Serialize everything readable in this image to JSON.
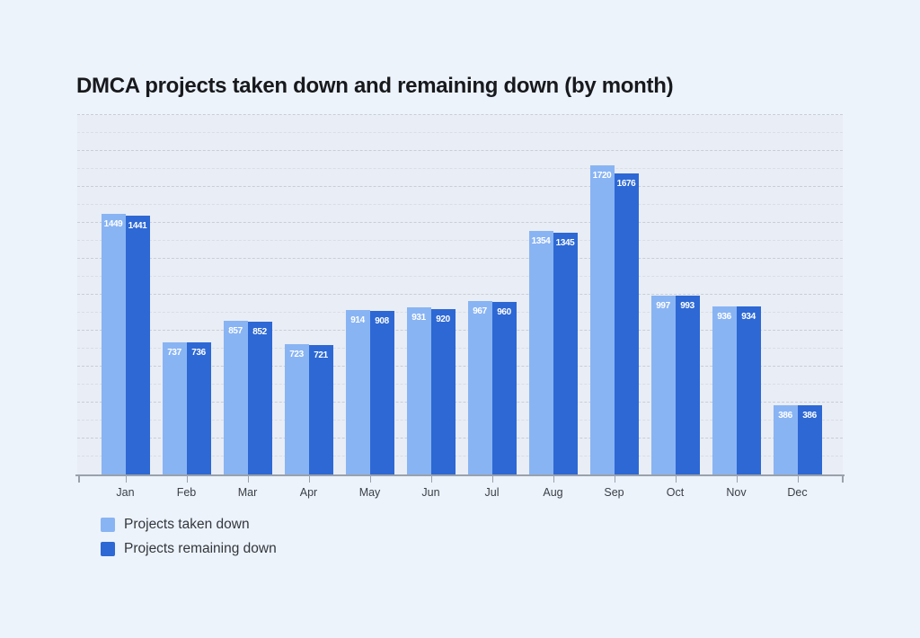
{
  "title": "DMCA projects taken down and remaining down (by month)",
  "colors": {
    "page_background": "#edf3fb",
    "plot_background": "#e9edf5",
    "series_light_blue": "#89b4f3",
    "series_dark_blue": "#2d68d4",
    "axis": "#9aa1ab",
    "bar_value_text": "#ffffff"
  },
  "chart_data": {
    "type": "bar",
    "title": "DMCA projects taken down and remaining down (by month)",
    "categories": [
      "Jan",
      "Feb",
      "Mar",
      "Apr",
      "May",
      "Jun",
      "Jul",
      "Aug",
      "Sep",
      "Oct",
      "Nov",
      "Dec"
    ],
    "series": [
      {
        "name": "Projects taken down",
        "color": "#89b4f3",
        "values": [
          1449,
          737,
          857,
          723,
          914,
          931,
          967,
          1354,
          1720,
          997,
          936,
          386
        ]
      },
      {
        "name": "Projects remaining down",
        "color": "#2d68d4",
        "values": [
          1441,
          736,
          852,
          721,
          908,
          920,
          960,
          1345,
          1676,
          993,
          934,
          386
        ]
      }
    ],
    "xlabel": "",
    "ylabel": "",
    "ylim": [
      0,
      2000
    ],
    "grid_step": 100,
    "grid": "horizontal dashed, no y-axis tick labels",
    "bar_value_labels": "white, inside bar near top",
    "legend_position": "bottom-left"
  }
}
